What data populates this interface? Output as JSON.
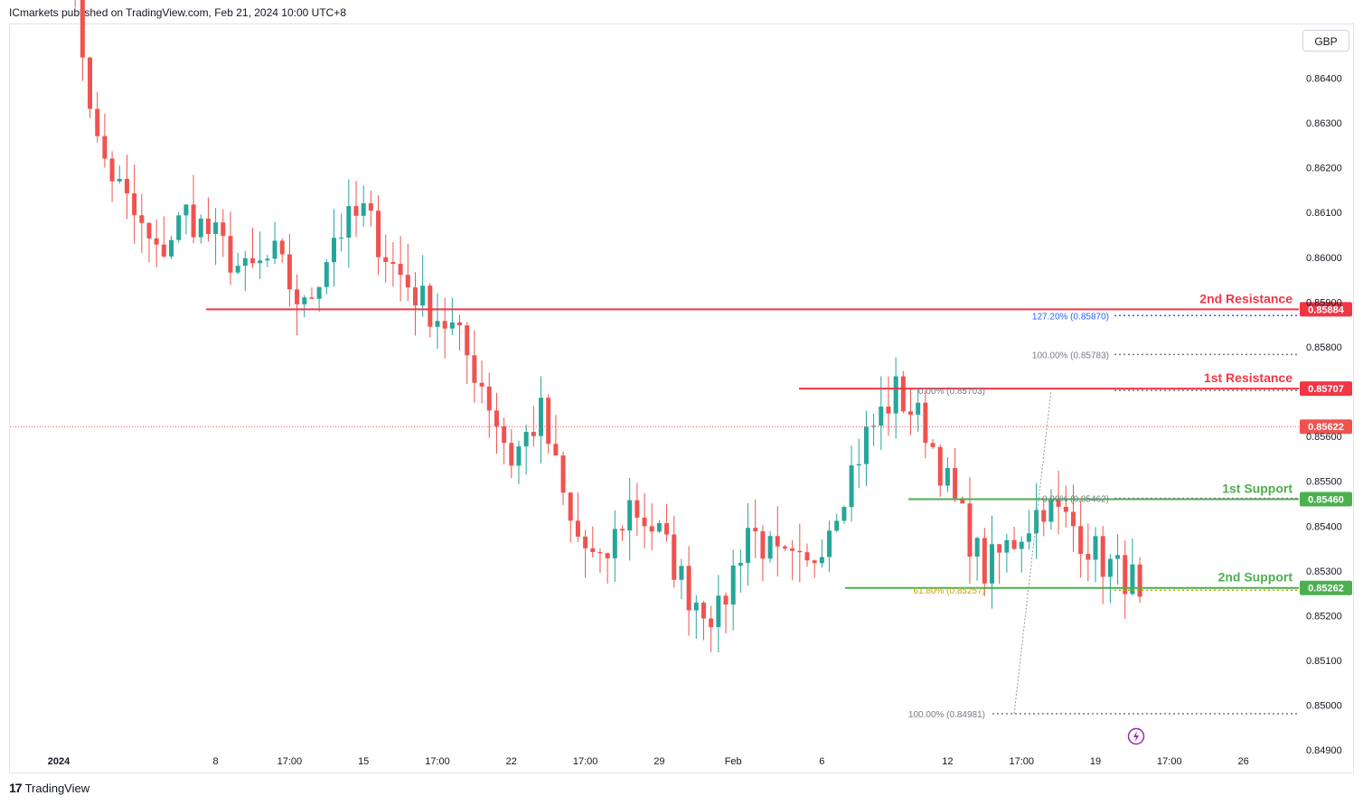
{
  "header": {
    "text": "ICmarkets published on TradingView.com, Feb 21, 2024 10:00 UTC+8"
  },
  "currency_label": "GBP",
  "footer": {
    "brand": "TradingView",
    "logo": "tradingview-logo"
  },
  "colors": {
    "up": "#26a69a",
    "down": "#ef5350",
    "resistance": "#f23645",
    "support": "#4caf50",
    "fib_blue": "#2962ff",
    "fib_gold": "#c9a100",
    "grid_text": "#131722"
  },
  "chart_data": {
    "type": "candlestick",
    "symbol_currency": "GBP",
    "ylim": [
      0.8485,
      0.8652
    ],
    "y_ticks": [
      "0.86400",
      "0.86300",
      "0.86200",
      "0.86100",
      "0.86000",
      "0.85900",
      "0.85800",
      "0.85600",
      "0.85500",
      "0.85400",
      "0.85300",
      "0.85200",
      "0.85100",
      "0.85000",
      "0.84900"
    ],
    "x_ticks": [
      {
        "label": "2024",
        "bold": true,
        "bar": 0
      },
      {
        "label": "8",
        "bar": 20
      },
      {
        "label": "17:00",
        "bar": 30
      },
      {
        "label": "15",
        "bar": 40
      },
      {
        "label": "17:00",
        "bar": 50
      },
      {
        "label": "22",
        "bar": 60
      },
      {
        "label": "17:00",
        "bar": 70
      },
      {
        "label": "29",
        "bar": 80
      },
      {
        "label": "Feb",
        "bar": 90
      },
      {
        "label": "6",
        "bar": 102
      },
      {
        "label": "12",
        "bar": 119
      },
      {
        "label": "17:00",
        "bar": 129
      },
      {
        "label": "19",
        "bar": 139
      },
      {
        "label": "17:00",
        "bar": 149
      },
      {
        "label": "26",
        "bar": 159
      }
    ],
    "levels": [
      {
        "name": "2nd Resistance",
        "value": 0.85884,
        "label": "0.85884",
        "kind": "resistance"
      },
      {
        "name": "1st Resistance",
        "value": 0.85707,
        "label": "0.85707",
        "kind": "resistance"
      },
      {
        "name": "1st Support",
        "value": 0.8546,
        "label": "0.85460",
        "kind": "support"
      },
      {
        "name": "2nd Support",
        "value": 0.85262,
        "label": "0.85262",
        "kind": "support"
      }
    ],
    "current_price": {
      "value": 0.85622,
      "label": "0.85622"
    },
    "fib_labels": [
      {
        "text": "127.20% (0.85870)",
        "value": 0.8587,
        "color": "blue"
      },
      {
        "text": "100.00% (0.85783)",
        "value": 0.85783,
        "color": "gray"
      },
      {
        "text": "0.00% (0.85703)",
        "value": 0.85703,
        "color": "gray"
      },
      {
        "text": "0.00% (0.85462)",
        "value": 0.85462,
        "color": "gray"
      },
      {
        "text": "61.80% (0.85257)",
        "value": 0.85257,
        "color": "gold"
      },
      {
        "text": "100.00% (0.84981)",
        "value": 0.84981,
        "color": "gray"
      }
    ],
    "anchors": [
      0.8668,
      0.8625,
      0.8612,
      0.86,
      0.861,
      0.8604,
      0.8596,
      0.86,
      0.8588,
      0.8605,
      0.861,
      0.8598,
      0.859,
      0.8584,
      0.8572,
      0.8555,
      0.8565,
      0.854,
      0.853,
      0.8545,
      0.8538,
      0.8525,
      0.852,
      0.854,
      0.8532,
      0.853,
      0.8545,
      0.856,
      0.857,
      0.8562,
      0.8545,
      0.853,
      0.8537,
      0.8545,
      0.854,
      0.8532,
      0.8528,
      0.85,
      0.8548,
      0.856,
      0.855,
      0.8538,
      0.8554,
      0.857,
      0.8556,
      0.8575,
      0.8562
    ]
  }
}
